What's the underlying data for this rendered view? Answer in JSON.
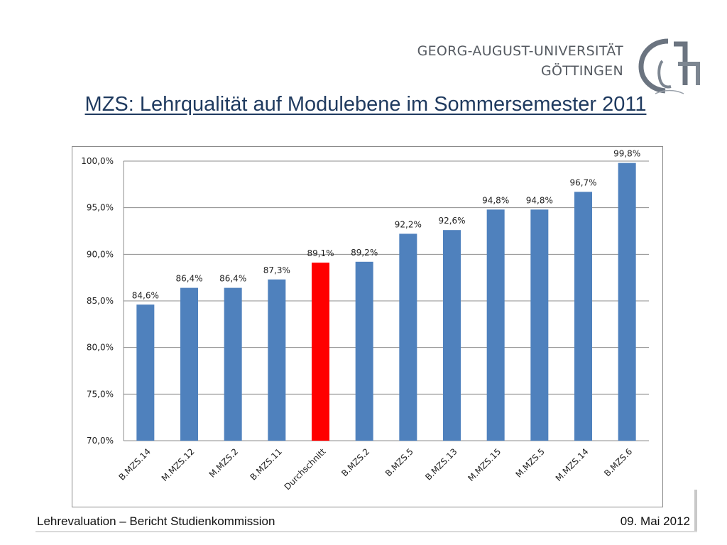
{
  "header": {
    "university_line1": "GEORG-AUGUST-UNIVERSITÄT",
    "university_line2": "GÖTTINGEN",
    "title": "MZS: Lehrqualität auf Modulebene im Sommersemester 2011"
  },
  "footer": {
    "left": "Lehrevaluation – Bericht Studienkommission",
    "right": "09. Mai 2012"
  },
  "colors": {
    "bar": "#4f81bd",
    "highlight": "#ff0000",
    "title": "#1f3a5f"
  },
  "chart_data": {
    "type": "bar",
    "categories": [
      "B.MZS.14",
      "M.MZS.12",
      "M.MZS.2",
      "B.MZS.11",
      "Durchschnitt",
      "B.MZS.2",
      "B.MZS.5",
      "B.MZS.13",
      "M.MZS.15",
      "M.MZS.5",
      "M.MZS.14",
      "B.MZS.6"
    ],
    "values": [
      84.6,
      86.4,
      86.4,
      87.3,
      89.1,
      89.2,
      92.2,
      92.6,
      94.8,
      94.8,
      96.7,
      99.8
    ],
    "data_labels": [
      "84,6%",
      "86,4%",
      "86,4%",
      "87,3%",
      "89,1%",
      "89,2%",
      "92,2%",
      "92,6%",
      "94,8%",
      "94,8%",
      "96,7%",
      "99,8%"
    ],
    "highlight_category": "Durchschnitt",
    "ylim": [
      70,
      100
    ],
    "yticks": [
      70,
      75,
      80,
      85,
      90,
      95,
      100
    ],
    "ytick_labels": [
      "70,0%",
      "75,0%",
      "80,0%",
      "85,0%",
      "90,0%",
      "95,0%",
      "100,0%"
    ],
    "grid": true,
    "xlabel": "",
    "ylabel": ""
  }
}
